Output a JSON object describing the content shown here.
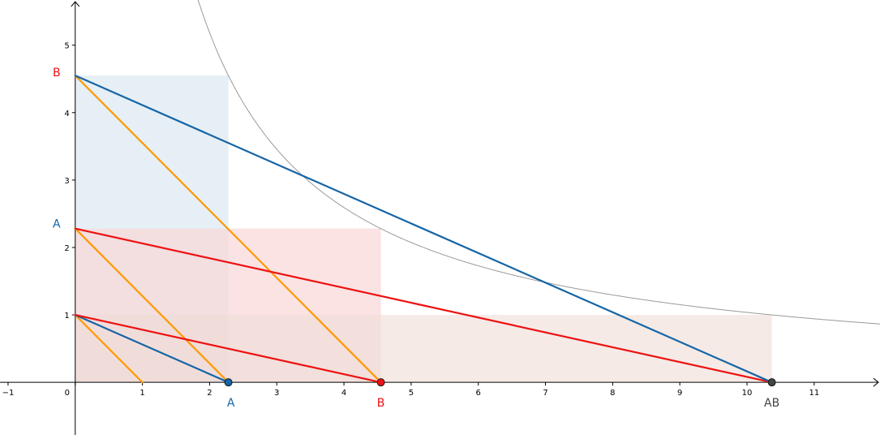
{
  "axes": {
    "x_ticks": [
      "−1",
      "0",
      "1",
      "2",
      "3",
      "4",
      "5",
      "6",
      "7",
      "8",
      "9",
      "10",
      "11"
    ],
    "y_ticks": [
      "1",
      "2",
      "3",
      "4",
      "5"
    ],
    "x_range": [
      -1.12,
      11.98
    ],
    "y_range": [
      -0.78,
      5.67
    ]
  },
  "colors": {
    "blue": "#1565a6",
    "red": "#ee1111",
    "orange": "#ff9900",
    "gray": "#444444",
    "curve": "#9a9a9a",
    "fill_blue": "#dce9f2",
    "fill_red": "#fad7d7",
    "fill_brown": "#eedcd5"
  },
  "values": {
    "A": 2.28,
    "B": 4.55,
    "AB": 10.37
  },
  "labels": {
    "axis_B": "B",
    "axis_A": "A",
    "point_A": "A",
    "point_B": "B",
    "point_AB": "AB"
  },
  "shapes": {
    "rects": [
      {
        "id": "rect-blue-A-by-B",
        "x0": 0,
        "y0": 0,
        "x1": 2.28,
        "y1": 4.55,
        "color": "fill_blue",
        "opacity": 0.75
      },
      {
        "id": "rect-red-B-by-A",
        "x0": 0,
        "y0": 0,
        "x1": 4.55,
        "y1": 2.28,
        "color": "fill_red",
        "opacity": 0.7
      },
      {
        "id": "rect-brown-AB-by-1",
        "x0": 0,
        "y0": 0,
        "x1": 10.37,
        "y1": 1,
        "color": "fill_brown",
        "opacity": 0.6
      }
    ],
    "segments": [
      {
        "id": "orange-seg-1-1",
        "x1": 0,
        "y1": 1,
        "x2": 1,
        "y2": 0,
        "color": "orange"
      },
      {
        "id": "orange-seg-A-A",
        "x1": 0,
        "y1": 2.28,
        "x2": 2.28,
        "y2": 0,
        "color": "orange"
      },
      {
        "id": "orange-seg-B-B",
        "x1": 0,
        "y1": 4.55,
        "x2": 4.55,
        "y2": 0,
        "color": "orange"
      },
      {
        "id": "blue-seg-1-A",
        "x1": 0,
        "y1": 1,
        "x2": 2.28,
        "y2": 0,
        "color": "blue"
      },
      {
        "id": "red-seg-1-B",
        "x1": 0,
        "y1": 1,
        "x2": 4.55,
        "y2": 0,
        "color": "red"
      },
      {
        "id": "red-seg-A-AB",
        "x1": 0,
        "y1": 2.28,
        "x2": 10.37,
        "y2": 0,
        "color": "red"
      },
      {
        "id": "blue-seg-B-AB",
        "x1": 0,
        "y1": 4.55,
        "x2": 10.37,
        "y2": 0,
        "color": "blue"
      }
    ],
    "points": [
      {
        "id": "point-A",
        "x": 2.28,
        "y": 0,
        "color": "blue"
      },
      {
        "id": "point-B",
        "x": 4.55,
        "y": 0,
        "color": "red"
      },
      {
        "id": "point-AB",
        "x": 10.37,
        "y": 0,
        "color": "gray"
      }
    ]
  }
}
